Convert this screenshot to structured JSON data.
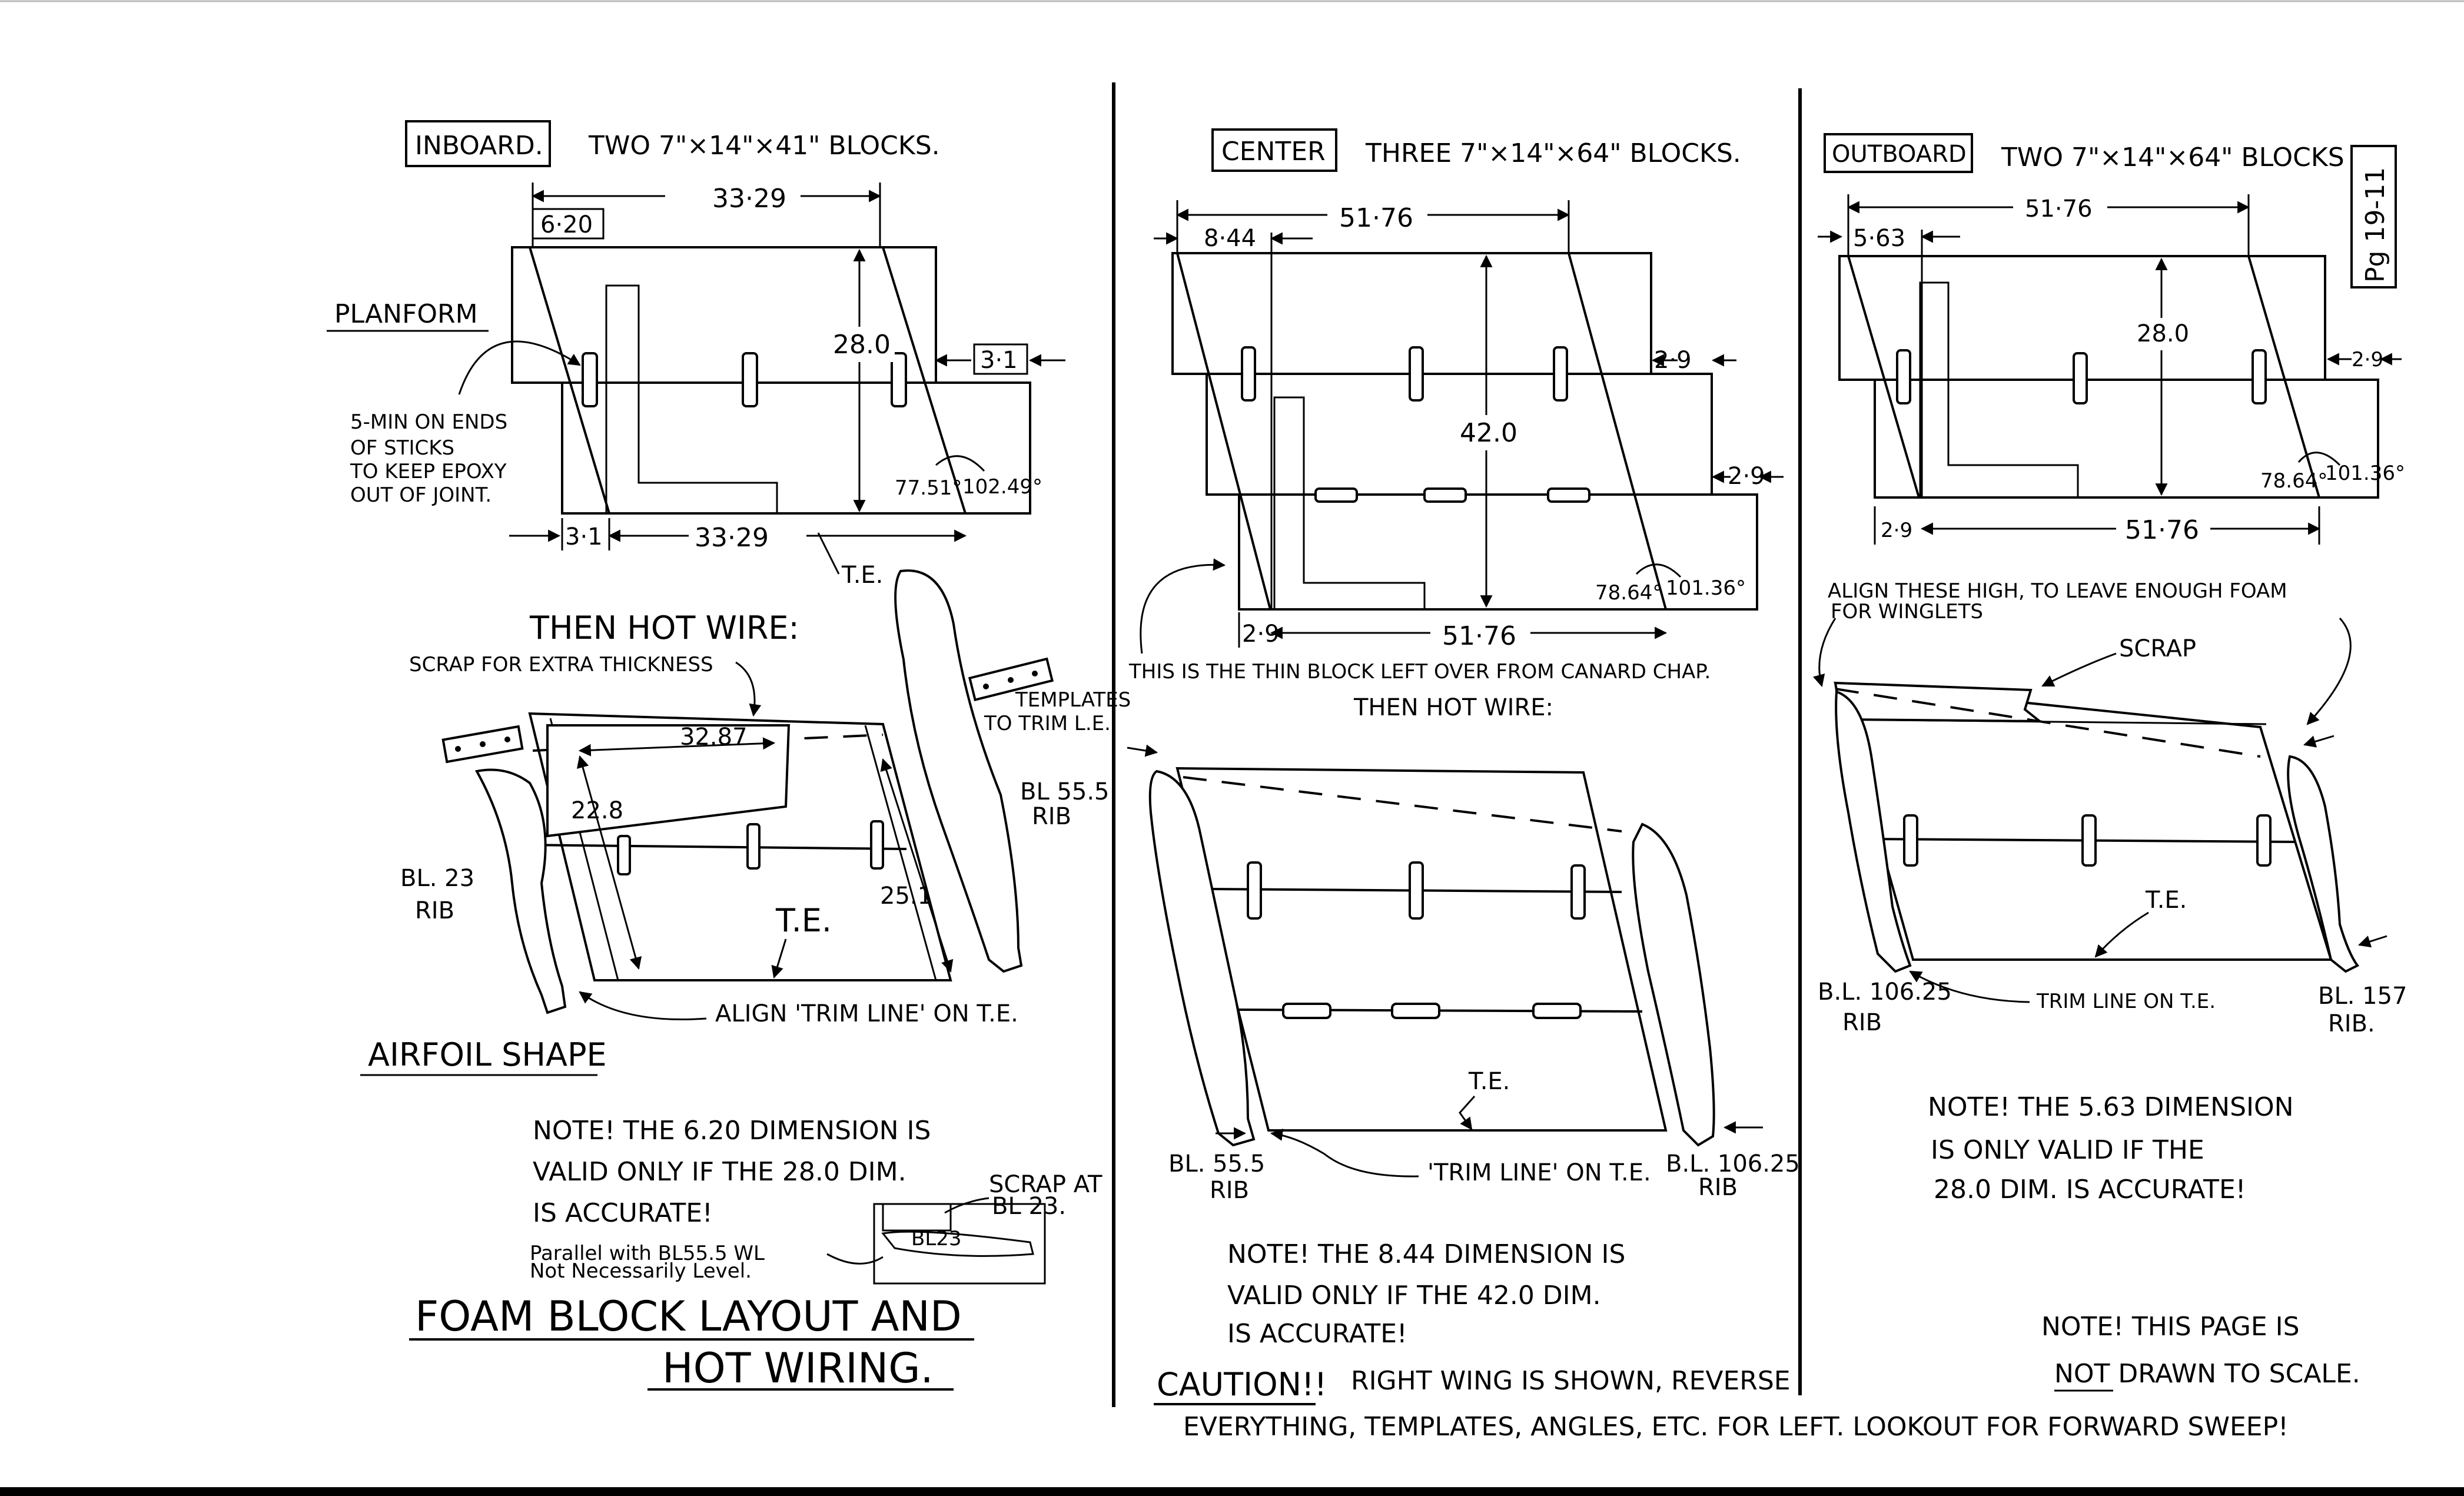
{
  "inboard": {
    "title": "INBOARD.",
    "blocks": "TWO 7\"×14\"×41\" BLOCKS.",
    "dim_top": "33·29",
    "dim_offset": "6·20",
    "dim_height": "28.0",
    "dim_step_right": "3·1",
    "dim_step_left": "3·1",
    "dim_bottom": "33·29",
    "angle_a": "77.51°",
    "angle_b": "102.49°",
    "te_label": "T.E.",
    "planform_label": "PLANFORM",
    "note_epoxy_1": "5-MIN ON ENDS",
    "note_epoxy_2": "OF STICKS",
    "note_epoxy_3": "TO KEEP EPOXY",
    "note_epoxy_4": "OUT OF JOINT.",
    "hotwire_label": "THEN HOT WIRE:",
    "scrap_label": "SCRAP FOR EXTRA THICKNESS",
    "dim_3287": "32.87",
    "dim_228": "22.8",
    "dim_251": "25.1",
    "te2_label": "T.E.",
    "templates_1": "TEMPLATES",
    "templates_2": "TO TRIM L.E.",
    "bl555_1": "BL 55.5",
    "bl555_2": "RIB",
    "bl23_1": "BL. 23",
    "bl23_2": "RIB",
    "align_label": "ALIGN 'TRIM LINE' ON T.E.",
    "airfoil_label": "AIRFOIL SHAPE",
    "note_1": "NOTE! THE 6.20 DIMENSION IS",
    "note_2": "VALID ONLY IF THE 28.0 DIM.",
    "note_3": "IS ACCURATE!",
    "scrap_at_1": "SCRAP AT",
    "scrap_at_2": "BL 23.",
    "bl23_box": "BL23",
    "parallel_1": "Parallel with BL55.5 WL",
    "parallel_2": "Not Necessarily Level.",
    "page_title_1": "FOAM BLOCK LAYOUT AND",
    "page_title_2": "HOT WIRING."
  },
  "center": {
    "title": "CENTER",
    "blocks": "THREE 7\"×14\"×64\" BLOCKS.",
    "dim_top": "51·76",
    "dim_offset": "8·44",
    "dim_height": "42.0",
    "dim_step_1": "2·9",
    "dim_step_2": "2·9",
    "dim_step_left": "2·9",
    "dim_bottom": "51·76",
    "angle_a": "78.64°",
    "angle_b": "101.36°",
    "thin_block_note": "THIS IS THE THIN BLOCK LEFT OVER FROM CANARD CHAP.",
    "hotwire_label": "THEN HOT WIRE:",
    "te_label": "T.E.",
    "bl555_1": "BL. 55.5",
    "bl555_2": "RIB",
    "trim_label": "'TRIM LINE' ON T.E.",
    "bl10625_1": "B.L. 106.25",
    "bl10625_2": "RIB",
    "note_1": "NOTE! THE 8.44 DIMENSION IS",
    "note_2": "VALID ONLY IF THE 42.0 DIM.",
    "note_3": "IS ACCURATE!",
    "caution": "CAUTION!!",
    "caution_text_1": "RIGHT WING IS SHOWN, REVERSE",
    "caution_text_2": "EVERYTHING, TEMPLATES, ANGLES, ETC. FOR LEFT. LOOKOUT FOR FORWARD SWEEP!"
  },
  "outboard": {
    "title": "OUTBOARD",
    "blocks": "TWO 7\"×14\"×64\" BLOCKS",
    "page_no": "Pg 19-11",
    "dim_top": "51·76",
    "dim_offset": "5·63",
    "dim_height": "28.0",
    "dim_step": "2·9",
    "dim_step_left": "2·9",
    "dim_bottom": "51·76",
    "angle_a": "78.64°",
    "angle_b": "101.36°",
    "align_1": "ALIGN THESE HIGH, TO LEAVE ENOUGH FOAM",
    "align_2": "FOR WINGLETS",
    "scrap_label": "SCRAP",
    "te_label": "T.E.",
    "bl10625_1": "B.L. 106.25",
    "bl10625_2": "RIB",
    "trim_label": "TRIM LINE ON T.E.",
    "bl157_1": "BL. 157",
    "bl157_2": "RIB.",
    "note_1": "NOTE! THE 5.63 DIMENSION",
    "note_2": "IS ONLY VALID IF THE",
    "note_3": "28.0 DIM. IS ACCURATE!",
    "scale_1": "NOTE! THIS PAGE IS",
    "scale_2": "NOT DRAWN TO SCALE."
  }
}
